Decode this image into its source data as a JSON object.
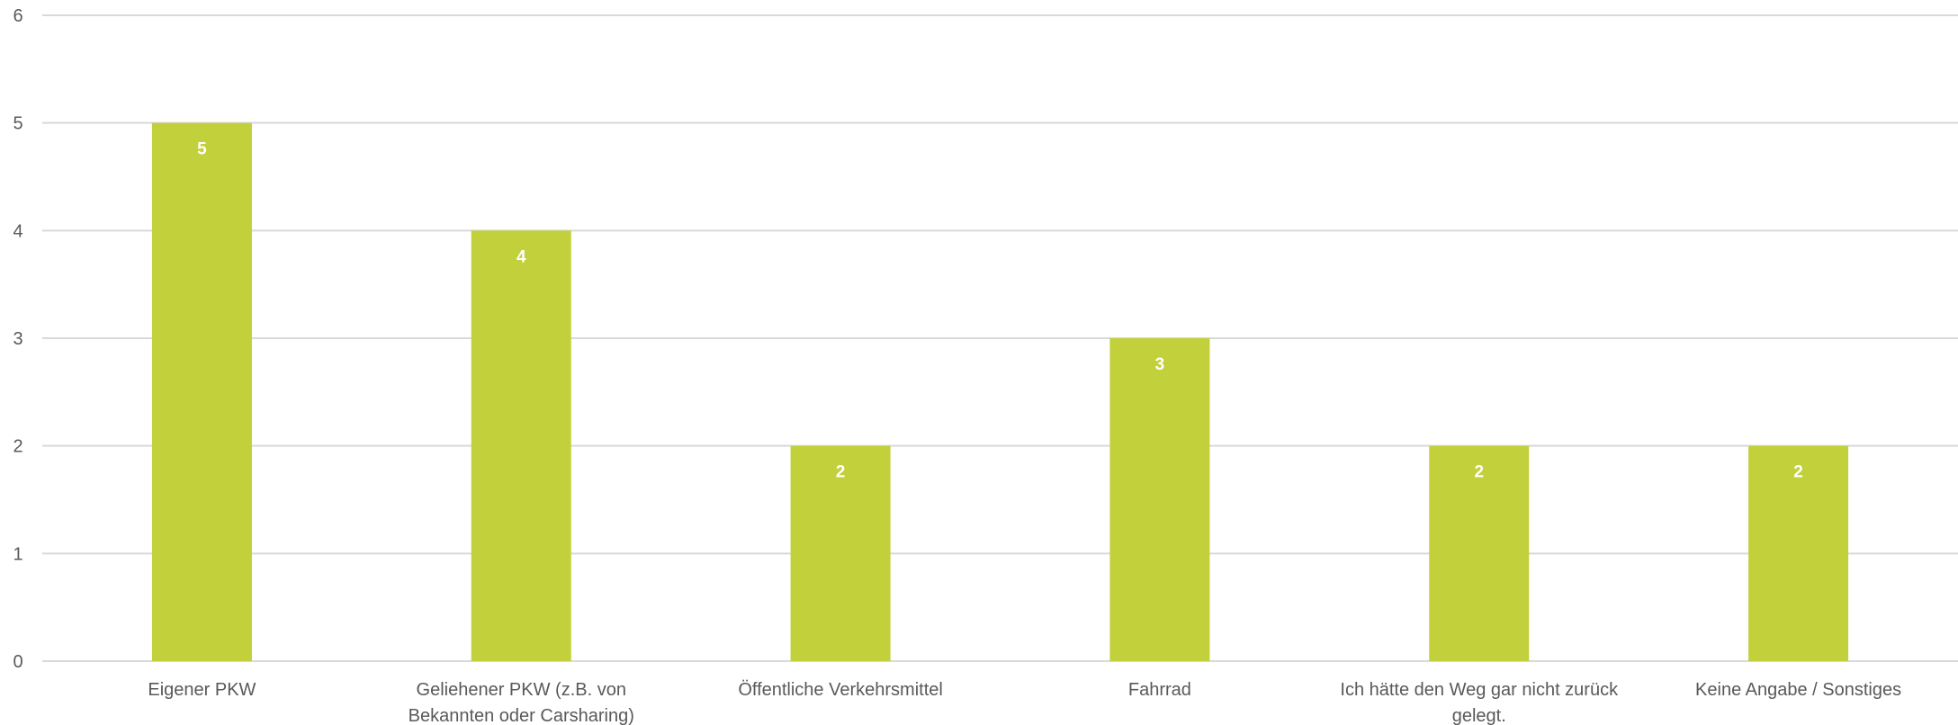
{
  "chart_data": {
    "type": "bar",
    "categories": [
      [
        "Eigener PKW"
      ],
      [
        "Geliehener PKW (z.B. von",
        "Bekannten oder Carsharing)"
      ],
      [
        "Öffentliche Verkehrsmittel"
      ],
      [
        "Fahrrad"
      ],
      [
        "Ich hätte den Weg gar nicht zurück",
        "gelegt."
      ],
      [
        "Keine Angabe / Sonstiges"
      ]
    ],
    "values": [
      5,
      4,
      2,
      3,
      2,
      2
    ],
    "y_ticks": [
      "0",
      "1",
      "2",
      "3",
      "4",
      "5",
      "6"
    ],
    "ylim": [
      0,
      6
    ],
    "grid": true,
    "legend": "none",
    "colors": {
      "bar": "#c2d03b",
      "grid": "#d9d9d9",
      "text": "#595959",
      "data_label": "#ffffff"
    }
  }
}
